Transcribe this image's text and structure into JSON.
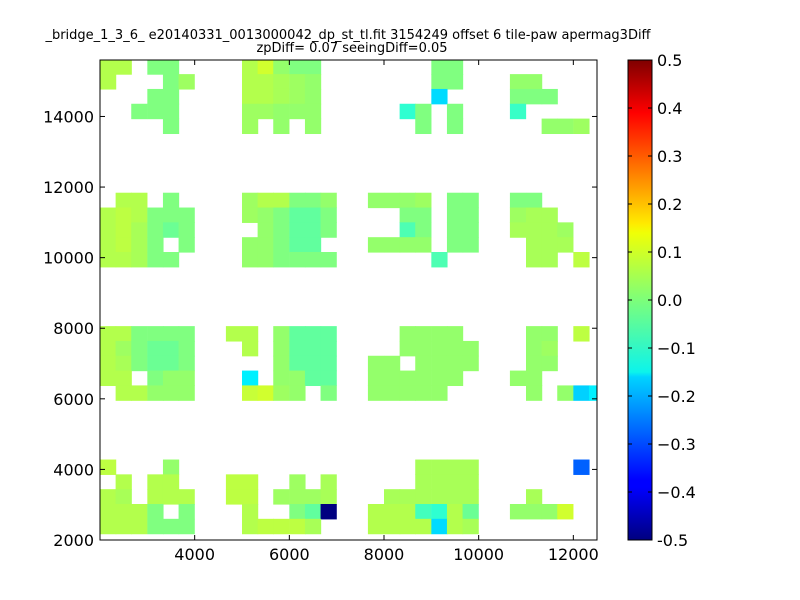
{
  "chart_data": {
    "type": "heatmap",
    "title_line1": "_bridge_1_3_6_ e20140331_0013000042_dp_st_tl.fit 3154249 offset 6 tile-paw apermag3Diff",
    "title_line2": "zpDiff= 0.07 seeingDiff=0.05",
    "xlabel": "",
    "ylabel": "",
    "xlim": [
      2000,
      12500
    ],
    "ylim": [
      2000,
      15600
    ],
    "x_ticks": [
      "4000",
      "6000",
      "8000",
      "10000",
      "12000"
    ],
    "y_ticks": [
      "2000",
      "4000",
      "6000",
      "8000",
      "10000",
      "12000",
      "14000"
    ],
    "cell_size": [
      330,
      420
    ],
    "colorbar": {
      "colormap": "jet",
      "vmin": -0.5,
      "vmax": 0.5,
      "ticks": [
        "-0.5",
        "−0.4",
        "−0.3",
        "−0.2",
        "−0.1",
        "0.0",
        "0.1",
        "0.2",
        "0.3",
        "0.4",
        "0.5"
      ]
    },
    "cells": [
      [
        2000,
        15200,
        0.05
      ],
      [
        2330,
        15200,
        0.05
      ],
      [
        3000,
        15200,
        0.0
      ],
      [
        3330,
        15200,
        0.0
      ],
      [
        5000,
        15200,
        0.05
      ],
      [
        5330,
        15200,
        0.08
      ],
      [
        5660,
        15200,
        0.02
      ],
      [
        6000,
        15200,
        0.0
      ],
      [
        6330,
        15200,
        0.0
      ],
      [
        9000,
        15200,
        0.0
      ],
      [
        9330,
        15200,
        0.0
      ],
      [
        2000,
        14780,
        0.05
      ],
      [
        3330,
        14780,
        0.0
      ],
      [
        3660,
        14780,
        0.03
      ],
      [
        5000,
        14780,
        0.05
      ],
      [
        5330,
        14780,
        0.05
      ],
      [
        5660,
        14780,
        0.04
      ],
      [
        6000,
        14780,
        0.03
      ],
      [
        6330,
        14780,
        0.02
      ],
      [
        9000,
        14780,
        0.0
      ],
      [
        9330,
        14780,
        0.0
      ],
      [
        10660,
        14780,
        0.02
      ],
      [
        11000,
        14780,
        0.02
      ],
      [
        3000,
        14360,
        0.0
      ],
      [
        3330,
        14360,
        0.0
      ],
      [
        5000,
        14360,
        0.05
      ],
      [
        5330,
        14360,
        0.05
      ],
      [
        5660,
        14360,
        0.04
      ],
      [
        6000,
        14360,
        0.03
      ],
      [
        6330,
        14360,
        0.02
      ],
      [
        9000,
        14360,
        -0.16
      ],
      [
        10660,
        14360,
        0.0
      ],
      [
        11000,
        14360,
        0.0
      ],
      [
        11330,
        14360,
        0.0
      ],
      [
        2660,
        13940,
        0.0
      ],
      [
        3000,
        13940,
        0.0
      ],
      [
        3330,
        13940,
        0.0
      ],
      [
        5000,
        13940,
        0.03
      ],
      [
        5330,
        13940,
        0.03
      ],
      [
        5660,
        13940,
        0.02
      ],
      [
        6000,
        13940,
        0.02
      ],
      [
        6330,
        13940,
        0.02
      ],
      [
        8330,
        13940,
        -0.08
      ],
      [
        8660,
        13940,
        0.0
      ],
      [
        9330,
        13940,
        0.0
      ],
      [
        10660,
        13940,
        -0.07
      ],
      [
        3330,
        13520,
        0.0
      ],
      [
        5000,
        13520,
        0.03
      ],
      [
        5660,
        13520,
        0.02
      ],
      [
        6330,
        13520,
        0.02
      ],
      [
        8660,
        13520,
        0.0
      ],
      [
        9330,
        13520,
        0.0
      ],
      [
        11330,
        13520,
        0.02
      ],
      [
        11660,
        13520,
        0.02
      ],
      [
        12000,
        13520,
        0.03
      ],
      [
        2330,
        11420,
        0.05
      ],
      [
        2660,
        11420,
        0.05
      ],
      [
        3330,
        11420,
        0.0
      ],
      [
        5000,
        11420,
        0.03
      ],
      [
        5330,
        11420,
        0.05
      ],
      [
        5660,
        11420,
        0.05
      ],
      [
        6000,
        11420,
        0.0
      ],
      [
        6330,
        11420,
        0.0
      ],
      [
        6660,
        11420,
        0.02
      ],
      [
        7660,
        11420,
        0.02
      ],
      [
        8000,
        11420,
        0.02
      ],
      [
        8330,
        11420,
        0.02
      ],
      [
        8660,
        11420,
        0.03
      ],
      [
        9330,
        11420,
        0.0
      ],
      [
        9660,
        11420,
        0.0
      ],
      [
        10660,
        11420,
        0.0
      ],
      [
        11000,
        11420,
        0.0
      ],
      [
        2000,
        11000,
        0.05
      ],
      [
        2330,
        11000,
        0.06
      ],
      [
        2660,
        11000,
        0.05
      ],
      [
        3000,
        11000,
        0.0
      ],
      [
        3330,
        11000,
        0.0
      ],
      [
        3660,
        11000,
        0.0
      ],
      [
        5000,
        11000,
        0.03
      ],
      [
        5330,
        11000,
        0.02
      ],
      [
        5660,
        11000,
        0.0
      ],
      [
        6000,
        11000,
        -0.03
      ],
      [
        6330,
        11000,
        -0.03
      ],
      [
        6660,
        11000,
        0.0
      ],
      [
        8330,
        11000,
        0.0
      ],
      [
        8660,
        11000,
        0.0
      ],
      [
        9330,
        11000,
        0.0
      ],
      [
        9660,
        11000,
        0.0
      ],
      [
        10660,
        11000,
        0.03
      ],
      [
        11000,
        11000,
        0.04
      ],
      [
        11330,
        11000,
        0.04
      ],
      [
        2000,
        10580,
        0.05
      ],
      [
        2330,
        10580,
        0.06
      ],
      [
        2660,
        10580,
        0.04
      ],
      [
        3000,
        10580,
        0.0
      ],
      [
        3330,
        10580,
        -0.02
      ],
      [
        3660,
        10580,
        0.0
      ],
      [
        5330,
        10580,
        0.02
      ],
      [
        5660,
        10580,
        0.0
      ],
      [
        6000,
        10580,
        -0.03
      ],
      [
        6330,
        10580,
        -0.03
      ],
      [
        6660,
        10580,
        0.0
      ],
      [
        8330,
        10580,
        -0.05
      ],
      [
        8660,
        10580,
        0.0
      ],
      [
        9330,
        10580,
        0.0
      ],
      [
        9660,
        10580,
        0.0
      ],
      [
        10660,
        10580,
        0.04
      ],
      [
        11000,
        10580,
        0.04
      ],
      [
        11330,
        10580,
        0.04
      ],
      [
        11660,
        10580,
        0.03
      ],
      [
        2000,
        10160,
        0.05
      ],
      [
        2330,
        10160,
        0.06
      ],
      [
        2660,
        10160,
        0.04
      ],
      [
        3000,
        10160,
        0.0
      ],
      [
        3660,
        10160,
        0.0
      ],
      [
        5000,
        10160,
        0.02
      ],
      [
        5330,
        10160,
        0.02
      ],
      [
        5660,
        10160,
        0.0
      ],
      [
        6000,
        10160,
        -0.03
      ],
      [
        6330,
        10160,
        -0.03
      ],
      [
        7660,
        10160,
        0.02
      ],
      [
        8000,
        10160,
        0.02
      ],
      [
        8330,
        10160,
        0.02
      ],
      [
        8660,
        10160,
        0.02
      ],
      [
        9330,
        10160,
        0.0
      ],
      [
        9660,
        10160,
        0.0
      ],
      [
        11000,
        10160,
        0.04
      ],
      [
        11330,
        10160,
        0.04
      ],
      [
        11660,
        10160,
        0.04
      ],
      [
        2000,
        9740,
        0.05
      ],
      [
        2330,
        9740,
        0.05
      ],
      [
        2660,
        9740,
        0.04
      ],
      [
        3000,
        9740,
        0.0
      ],
      [
        3330,
        9740,
        0.0
      ],
      [
        5000,
        9740,
        0.02
      ],
      [
        5330,
        9740,
        0.02
      ],
      [
        5660,
        9740,
        0.0
      ],
      [
        6000,
        9740,
        0.0
      ],
      [
        6330,
        9740,
        0.0
      ],
      [
        6660,
        9740,
        0.0
      ],
      [
        9000,
        9740,
        -0.05
      ],
      [
        11000,
        9740,
        0.04
      ],
      [
        11330,
        9740,
        0.04
      ],
      [
        12000,
        9740,
        0.06
      ],
      [
        2000,
        7640,
        0.05
      ],
      [
        2330,
        7640,
        0.05
      ],
      [
        2660,
        7640,
        0.0
      ],
      [
        3000,
        7640,
        0.0
      ],
      [
        3330,
        7640,
        0.0
      ],
      [
        3660,
        7640,
        0.0
      ],
      [
        4660,
        7640,
        0.05
      ],
      [
        5000,
        7640,
        0.05
      ],
      [
        5660,
        7640,
        0.02
      ],
      [
        6000,
        7640,
        -0.03
      ],
      [
        6330,
        7640,
        -0.03
      ],
      [
        6660,
        7640,
        -0.03
      ],
      [
        8330,
        7640,
        0.02
      ],
      [
        8660,
        7640,
        0.02
      ],
      [
        9000,
        7640,
        0.02
      ],
      [
        9330,
        7640,
        0.02
      ],
      [
        11000,
        7640,
        0.02
      ],
      [
        11330,
        7640,
        0.02
      ],
      [
        12000,
        7640,
        0.06
      ],
      [
        2000,
        7220,
        0.05
      ],
      [
        2330,
        7220,
        0.03
      ],
      [
        2660,
        7220,
        0.0
      ],
      [
        3000,
        7220,
        -0.02
      ],
      [
        3330,
        7220,
        -0.02
      ],
      [
        3660,
        7220,
        0.0
      ],
      [
        5000,
        7220,
        0.05
      ],
      [
        5660,
        7220,
        0.02
      ],
      [
        6000,
        7220,
        -0.03
      ],
      [
        6330,
        7220,
        -0.03
      ],
      [
        6660,
        7220,
        -0.03
      ],
      [
        8330,
        7220,
        0.02
      ],
      [
        8660,
        7220,
        0.02
      ],
      [
        9000,
        7220,
        0.02
      ],
      [
        9330,
        7220,
        0.02
      ],
      [
        9660,
        7220,
        0.02
      ],
      [
        11000,
        7220,
        0.02
      ],
      [
        11330,
        7220,
        0.03
      ],
      [
        2000,
        6800,
        0.05
      ],
      [
        2330,
        6800,
        0.04
      ],
      [
        2660,
        6800,
        0.0
      ],
      [
        3000,
        6800,
        -0.02
      ],
      [
        3330,
        6800,
        -0.02
      ],
      [
        3660,
        6800,
        0.0
      ],
      [
        5660,
        6800,
        0.02
      ],
      [
        6000,
        6800,
        -0.03
      ],
      [
        6330,
        6800,
        -0.03
      ],
      [
        6660,
        6800,
        -0.03
      ],
      [
        7660,
        6800,
        0.02
      ],
      [
        8000,
        6800,
        0.02
      ],
      [
        8660,
        6800,
        0.02
      ],
      [
        9000,
        6800,
        0.02
      ],
      [
        9330,
        6800,
        0.02
      ],
      [
        9660,
        6800,
        0.02
      ],
      [
        11000,
        6800,
        0.02
      ],
      [
        11330,
        6800,
        0.02
      ],
      [
        2000,
        6380,
        0.05
      ],
      [
        2330,
        6380,
        0.05
      ],
      [
        3000,
        6380,
        0.0
      ],
      [
        3330,
        6380,
        0.02
      ],
      [
        3660,
        6380,
        0.02
      ],
      [
        5000,
        6380,
        -0.14
      ],
      [
        5660,
        6380,
        0.02
      ],
      [
        6000,
        6380,
        0.02
      ],
      [
        6330,
        6380,
        -0.03
      ],
      [
        6660,
        6380,
        -0.03
      ],
      [
        7660,
        6380,
        0.02
      ],
      [
        8000,
        6380,
        0.02
      ],
      [
        8330,
        6380,
        0.02
      ],
      [
        8660,
        6380,
        0.02
      ],
      [
        9000,
        6380,
        0.02
      ],
      [
        9330,
        6380,
        0.02
      ],
      [
        10660,
        6380,
        0.02
      ],
      [
        11000,
        6380,
        0.02
      ],
      [
        2330,
        5960,
        0.05
      ],
      [
        2660,
        5960,
        0.05
      ],
      [
        3000,
        5960,
        0.02
      ],
      [
        3330,
        5960,
        0.02
      ],
      [
        3660,
        5960,
        0.02
      ],
      [
        5000,
        5960,
        0.07
      ],
      [
        5330,
        5960,
        0.08
      ],
      [
        5660,
        5960,
        0.03
      ],
      [
        6000,
        5960,
        0.02
      ],
      [
        6660,
        5960,
        0.0
      ],
      [
        7660,
        5960,
        0.02
      ],
      [
        8000,
        5960,
        0.02
      ],
      [
        8330,
        5960,
        0.02
      ],
      [
        8660,
        5960,
        0.02
      ],
      [
        9000,
        5960,
        0.02
      ],
      [
        11000,
        5960,
        0.02
      ],
      [
        11660,
        5960,
        0.02
      ],
      [
        12000,
        5960,
        -0.17
      ],
      [
        12330,
        5960,
        -0.14
      ],
      [
        2000,
        3860,
        0.06
      ],
      [
        3330,
        3860,
        0.02
      ],
      [
        8660,
        3860,
        0.04
      ],
      [
        9000,
        3860,
        0.04
      ],
      [
        9330,
        3860,
        0.04
      ],
      [
        9660,
        3860,
        0.04
      ],
      [
        12000,
        3860,
        -0.28
      ],
      [
        2330,
        3440,
        0.05
      ],
      [
        3000,
        3440,
        0.05
      ],
      [
        3330,
        3440,
        0.05
      ],
      [
        4660,
        3440,
        0.06
      ],
      [
        5000,
        3440,
        0.06
      ],
      [
        6000,
        3440,
        0.03
      ],
      [
        6660,
        3440,
        0.04
      ],
      [
        8660,
        3440,
        0.04
      ],
      [
        9000,
        3440,
        0.04
      ],
      [
        9330,
        3440,
        0.04
      ],
      [
        9660,
        3440,
        0.04
      ],
      [
        2000,
        3020,
        0.05
      ],
      [
        2330,
        3020,
        0.04
      ],
      [
        3000,
        3020,
        0.05
      ],
      [
        3330,
        3020,
        0.05
      ],
      [
        3660,
        3020,
        0.05
      ],
      [
        4660,
        3020,
        0.06
      ],
      [
        5000,
        3020,
        0.06
      ],
      [
        5660,
        3020,
        0.03
      ],
      [
        6000,
        3020,
        0.03
      ],
      [
        6330,
        3020,
        0.03
      ],
      [
        6660,
        3020,
        0.04
      ],
      [
        8000,
        3020,
        0.04
      ],
      [
        8330,
        3020,
        0.04
      ],
      [
        8660,
        3020,
        0.04
      ],
      [
        9000,
        3020,
        0.04
      ],
      [
        9330,
        3020,
        0.04
      ],
      [
        9660,
        3020,
        0.04
      ],
      [
        11000,
        3020,
        0.04
      ],
      [
        2000,
        2600,
        0.05
      ],
      [
        2330,
        2600,
        0.05
      ],
      [
        2660,
        2600,
        0.05
      ],
      [
        3000,
        2600,
        0.0
      ],
      [
        3660,
        2600,
        0.0
      ],
      [
        5000,
        2600,
        0.05
      ],
      [
        6000,
        2600,
        0.0
      ],
      [
        6330,
        2600,
        -0.03
      ],
      [
        6660,
        2600,
        -0.5
      ],
      [
        7660,
        2600,
        0.05
      ],
      [
        8000,
        2600,
        0.05
      ],
      [
        8330,
        2600,
        0.05
      ],
      [
        8660,
        2600,
        -0.06
      ],
      [
        9000,
        2600,
        -0.08
      ],
      [
        9330,
        2600,
        0.05
      ],
      [
        9660,
        2600,
        -0.02
      ],
      [
        10660,
        2600,
        0.02
      ],
      [
        11000,
        2600,
        0.02
      ],
      [
        11330,
        2600,
        0.02
      ],
      [
        11660,
        2600,
        0.08
      ],
      [
        2000,
        2180,
        0.05
      ],
      [
        2330,
        2180,
        0.05
      ],
      [
        2660,
        2180,
        0.05
      ],
      [
        3000,
        2180,
        0.0
      ],
      [
        3330,
        2180,
        0.0
      ],
      [
        3660,
        2180,
        0.0
      ],
      [
        5000,
        2180,
        0.05
      ],
      [
        5330,
        2180,
        0.06
      ],
      [
        5660,
        2180,
        0.06
      ],
      [
        6000,
        2180,
        0.06
      ],
      [
        6330,
        2180,
        0.04
      ],
      [
        7660,
        2180,
        0.05
      ],
      [
        8000,
        2180,
        0.05
      ],
      [
        8330,
        2180,
        0.05
      ],
      [
        8660,
        2180,
        0.05
      ],
      [
        9000,
        2180,
        -0.16
      ],
      [
        9330,
        2180,
        0.05
      ],
      [
        9660,
        2180,
        0.04
      ]
    ]
  }
}
